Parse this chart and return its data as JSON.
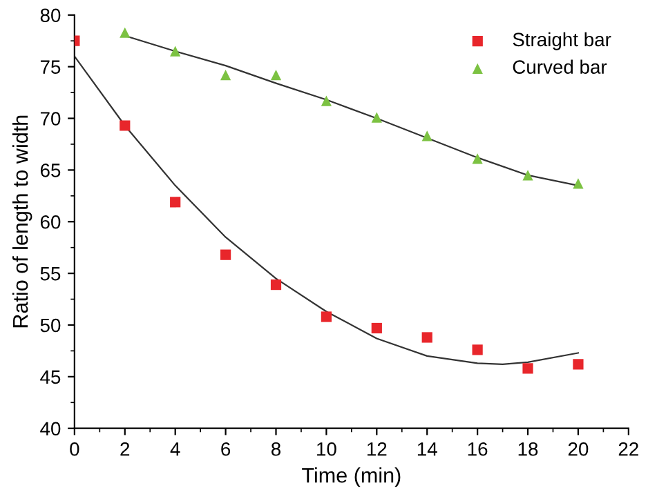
{
  "chart_data": {
    "type": "scatter",
    "xlabel": "Time (min)",
    "ylabel": "Ratio of length to width",
    "xlim": [
      0,
      22
    ],
    "xticks": [
      0,
      2,
      4,
      6,
      8,
      10,
      12,
      14,
      16,
      18,
      20,
      22
    ],
    "ylim": [
      40,
      80
    ],
    "yticks": [
      40,
      45,
      50,
      55,
      60,
      65,
      70,
      75,
      80
    ],
    "grid": false,
    "legend": "top right",
    "series": [
      {
        "name": "Straight bar",
        "color": "#e8262b",
        "marker": "square",
        "x": [
          0,
          2,
          4,
          6,
          8,
          10,
          12,
          14,
          16,
          18,
          20
        ],
        "values": [
          77.5,
          69.3,
          61.9,
          56.8,
          53.9,
          50.8,
          49.7,
          48.8,
          47.6,
          45.8,
          46.2
        ]
      },
      {
        "name": "Curved bar",
        "color": "#7cc242",
        "marker": "triangle",
        "x": [
          2,
          4,
          6,
          8,
          10,
          12,
          14,
          16,
          18,
          20
        ],
        "values": [
          78.3,
          76.5,
          74.2,
          74.2,
          71.7,
          70.1,
          68.3,
          66.1,
          64.5,
          63.7
        ]
      },
      {
        "type": "line",
        "color": "#333333",
        "x": [
          0,
          2,
          4,
          6,
          8,
          10,
          12,
          14,
          16,
          17,
          18,
          20
        ],
        "values": [
          76,
          69.3,
          63.5,
          58.5,
          54.5,
          51.3,
          48.7,
          47.0,
          46.3,
          46.2,
          46.4,
          47.3
        ]
      },
      {
        "type": "line",
        "color": "#333333",
        "x": [
          2,
          4,
          6,
          8,
          10,
          12,
          14,
          16,
          18,
          20
        ],
        "values": [
          78,
          76.5,
          75.1,
          73.4,
          71.8,
          70.0,
          68.1,
          66.2,
          64.5,
          63.5
        ]
      }
    ]
  }
}
